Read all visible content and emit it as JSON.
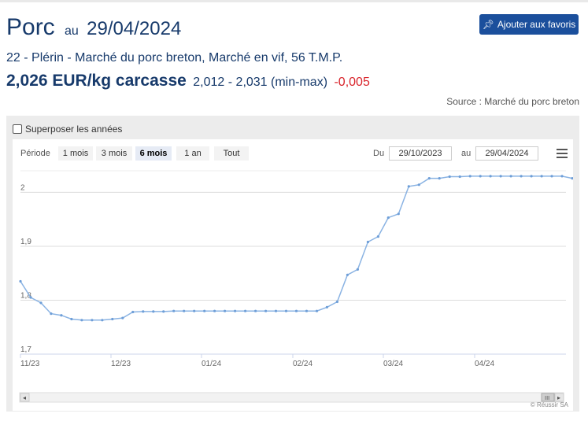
{
  "header": {
    "title": "Porc",
    "au": "au",
    "date": "29/04/2024",
    "fav_button": "Ajouter aux favoris",
    "subtitle": "22 - Plérin - Marché du porc breton, Marché en vif, 56 T.M.P.",
    "price": "2,026 EUR/kg carcasse",
    "minmax": "2,012 - 2,031 (min-max)",
    "delta": "-0,005",
    "source": "Source : Marché du porc breton"
  },
  "toolbar": {
    "overlay_label": "Superposer les années",
    "periode_label": "Période",
    "ranges": [
      "1 mois",
      "3 mois",
      "6 mois",
      "1 an",
      "Tout"
    ],
    "selected_range": "6 mois",
    "du_label": "Du",
    "au_label": "au",
    "from_date": "29/10/2023",
    "to_date": "29/04/2024"
  },
  "credit": "© Réussir SA",
  "colors": {
    "line": "#8ab3e3",
    "accent": "#1b4f9c",
    "delta": "#d9242b"
  },
  "chart_data": {
    "type": "line",
    "x_tick_labels": [
      "11/23",
      "12/23",
      "01/24",
      "02/24",
      "03/24",
      "04/24"
    ],
    "y_tick_labels": [
      "1,7",
      "1,8",
      "1,9",
      "2"
    ],
    "ylim": [
      1.7,
      2.04
    ],
    "grid": true,
    "series": [
      {
        "values": [
          1.835,
          1.805,
          1.795,
          1.775,
          1.772,
          1.765,
          1.763,
          1.763,
          1.763,
          1.765,
          1.767,
          1.778,
          1.779,
          1.779,
          1.779,
          1.78,
          1.78,
          1.78,
          1.78,
          1.78,
          1.78,
          1.78,
          1.78,
          1.78,
          1.78,
          1.78,
          1.78,
          1.78,
          1.78,
          1.78,
          1.787,
          1.797,
          1.847,
          1.857,
          1.908,
          1.918,
          1.953,
          1.96,
          2.011,
          2.014,
          2.026,
          2.026,
          2.029,
          2.029,
          2.03,
          2.03,
          2.03,
          2.03,
          2.03,
          2.03,
          2.03,
          2.03,
          2.03,
          2.03,
          2.026
        ]
      }
    ]
  }
}
